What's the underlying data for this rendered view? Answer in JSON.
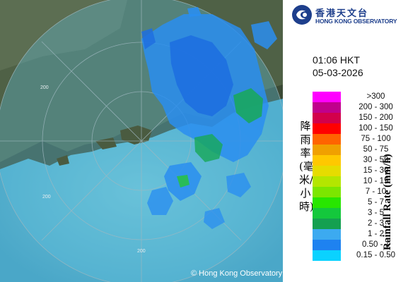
{
  "logo": {
    "chinese_name": "香港天文台",
    "english_name": "HONG KONG OBSERVATORY"
  },
  "timestamp": {
    "time": "01:06 HKT",
    "date": "05-03-2026"
  },
  "legend": {
    "title_en": "Rainfall Rate (mm/h)",
    "title_cn": "降雨率(毫米/小時)",
    "items": [
      {
        "label": ">300",
        "color": "#ff00ff"
      },
      {
        "label": "200 - 300",
        "color": "#c0008c"
      },
      {
        "label": "150 - 200",
        "color": "#d2004b"
      },
      {
        "label": "100 - 150",
        "color": "#ff0000"
      },
      {
        "label": "75 - 100",
        "color": "#ff6400"
      },
      {
        "label": "50 - 75",
        "color": "#f0a000"
      },
      {
        "label": "30 - 50",
        "color": "#ffc800"
      },
      {
        "label": "15 - 30",
        "color": "#e6dc00"
      },
      {
        "label": "10 - 15",
        "color": "#b4e600"
      },
      {
        "label": "7 - 10",
        "color": "#7ce600"
      },
      {
        "label": "5 - 7",
        "color": "#28e600"
      },
      {
        "label": "3 - 5",
        "color": "#14c83c"
      },
      {
        "label": "2 - 3",
        "color": "#14a050"
      },
      {
        "label": "1 - 2",
        "color": "#3caaf0"
      },
      {
        "label": "0.50 - 1",
        "color": "#1e82f0"
      },
      {
        "label": "0.15 - 0.50",
        "color": "#0ad2ff"
      }
    ]
  },
  "map": {
    "range_ring_labels": [
      "200",
      "200",
      "200"
    ],
    "copyright": "© Hong Kong Observatory"
  }
}
